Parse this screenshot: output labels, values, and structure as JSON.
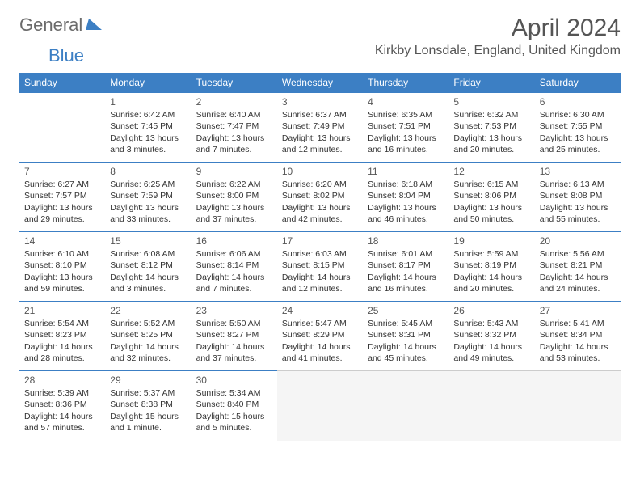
{
  "logo": {
    "part1": "General",
    "part2": "Blue"
  },
  "header": {
    "title": "April 2024",
    "location": "Kirkby Lonsdale, England, United Kingdom"
  },
  "columns": [
    "Sunday",
    "Monday",
    "Tuesday",
    "Wednesday",
    "Thursday",
    "Friday",
    "Saturday"
  ],
  "colors": {
    "header_bg": "#3c7fc4",
    "header_text": "#ffffff",
    "border": "#3c7fc4",
    "text": "#333333"
  },
  "weeks": [
    [
      {
        "day": "",
        "lines": []
      },
      {
        "day": "1",
        "lines": [
          "Sunrise: 6:42 AM",
          "Sunset: 7:45 PM",
          "Daylight: 13 hours and 3 minutes."
        ]
      },
      {
        "day": "2",
        "lines": [
          "Sunrise: 6:40 AM",
          "Sunset: 7:47 PM",
          "Daylight: 13 hours and 7 minutes."
        ]
      },
      {
        "day": "3",
        "lines": [
          "Sunrise: 6:37 AM",
          "Sunset: 7:49 PM",
          "Daylight: 13 hours and 12 minutes."
        ]
      },
      {
        "day": "4",
        "lines": [
          "Sunrise: 6:35 AM",
          "Sunset: 7:51 PM",
          "Daylight: 13 hours and 16 minutes."
        ]
      },
      {
        "day": "5",
        "lines": [
          "Sunrise: 6:32 AM",
          "Sunset: 7:53 PM",
          "Daylight: 13 hours and 20 minutes."
        ]
      },
      {
        "day": "6",
        "lines": [
          "Sunrise: 6:30 AM",
          "Sunset: 7:55 PM",
          "Daylight: 13 hours and 25 minutes."
        ]
      }
    ],
    [
      {
        "day": "7",
        "lines": [
          "Sunrise: 6:27 AM",
          "Sunset: 7:57 PM",
          "Daylight: 13 hours and 29 minutes."
        ]
      },
      {
        "day": "8",
        "lines": [
          "Sunrise: 6:25 AM",
          "Sunset: 7:59 PM",
          "Daylight: 13 hours and 33 minutes."
        ]
      },
      {
        "day": "9",
        "lines": [
          "Sunrise: 6:22 AM",
          "Sunset: 8:00 PM",
          "Daylight: 13 hours and 37 minutes."
        ]
      },
      {
        "day": "10",
        "lines": [
          "Sunrise: 6:20 AM",
          "Sunset: 8:02 PM",
          "Daylight: 13 hours and 42 minutes."
        ]
      },
      {
        "day": "11",
        "lines": [
          "Sunrise: 6:18 AM",
          "Sunset: 8:04 PM",
          "Daylight: 13 hours and 46 minutes."
        ]
      },
      {
        "day": "12",
        "lines": [
          "Sunrise: 6:15 AM",
          "Sunset: 8:06 PM",
          "Daylight: 13 hours and 50 minutes."
        ]
      },
      {
        "day": "13",
        "lines": [
          "Sunrise: 6:13 AM",
          "Sunset: 8:08 PM",
          "Daylight: 13 hours and 55 minutes."
        ]
      }
    ],
    [
      {
        "day": "14",
        "lines": [
          "Sunrise: 6:10 AM",
          "Sunset: 8:10 PM",
          "Daylight: 13 hours and 59 minutes."
        ]
      },
      {
        "day": "15",
        "lines": [
          "Sunrise: 6:08 AM",
          "Sunset: 8:12 PM",
          "Daylight: 14 hours and 3 minutes."
        ]
      },
      {
        "day": "16",
        "lines": [
          "Sunrise: 6:06 AM",
          "Sunset: 8:14 PM",
          "Daylight: 14 hours and 7 minutes."
        ]
      },
      {
        "day": "17",
        "lines": [
          "Sunrise: 6:03 AM",
          "Sunset: 8:15 PM",
          "Daylight: 14 hours and 12 minutes."
        ]
      },
      {
        "day": "18",
        "lines": [
          "Sunrise: 6:01 AM",
          "Sunset: 8:17 PM",
          "Daylight: 14 hours and 16 minutes."
        ]
      },
      {
        "day": "19",
        "lines": [
          "Sunrise: 5:59 AM",
          "Sunset: 8:19 PM",
          "Daylight: 14 hours and 20 minutes."
        ]
      },
      {
        "day": "20",
        "lines": [
          "Sunrise: 5:56 AM",
          "Sunset: 8:21 PM",
          "Daylight: 14 hours and 24 minutes."
        ]
      }
    ],
    [
      {
        "day": "21",
        "lines": [
          "Sunrise: 5:54 AM",
          "Sunset: 8:23 PM",
          "Daylight: 14 hours and 28 minutes."
        ]
      },
      {
        "day": "22",
        "lines": [
          "Sunrise: 5:52 AM",
          "Sunset: 8:25 PM",
          "Daylight: 14 hours and 32 minutes."
        ]
      },
      {
        "day": "23",
        "lines": [
          "Sunrise: 5:50 AM",
          "Sunset: 8:27 PM",
          "Daylight: 14 hours and 37 minutes."
        ]
      },
      {
        "day": "24",
        "lines": [
          "Sunrise: 5:47 AM",
          "Sunset: 8:29 PM",
          "Daylight: 14 hours and 41 minutes."
        ]
      },
      {
        "day": "25",
        "lines": [
          "Sunrise: 5:45 AM",
          "Sunset: 8:31 PM",
          "Daylight: 14 hours and 45 minutes."
        ]
      },
      {
        "day": "26",
        "lines": [
          "Sunrise: 5:43 AM",
          "Sunset: 8:32 PM",
          "Daylight: 14 hours and 49 minutes."
        ]
      },
      {
        "day": "27",
        "lines": [
          "Sunrise: 5:41 AM",
          "Sunset: 8:34 PM",
          "Daylight: 14 hours and 53 minutes."
        ]
      }
    ],
    [
      {
        "day": "28",
        "lines": [
          "Sunrise: 5:39 AM",
          "Sunset: 8:36 PM",
          "Daylight: 14 hours and 57 minutes."
        ]
      },
      {
        "day": "29",
        "lines": [
          "Sunrise: 5:37 AM",
          "Sunset: 8:38 PM",
          "Daylight: 15 hours and 1 minute."
        ]
      },
      {
        "day": "30",
        "lines": [
          "Sunrise: 5:34 AM",
          "Sunset: 8:40 PM",
          "Daylight: 15 hours and 5 minutes."
        ]
      },
      {
        "day": "",
        "lines": [],
        "trailing": true
      },
      {
        "day": "",
        "lines": [],
        "trailing": true
      },
      {
        "day": "",
        "lines": [],
        "trailing": true
      },
      {
        "day": "",
        "lines": [],
        "trailing": true
      }
    ]
  ]
}
